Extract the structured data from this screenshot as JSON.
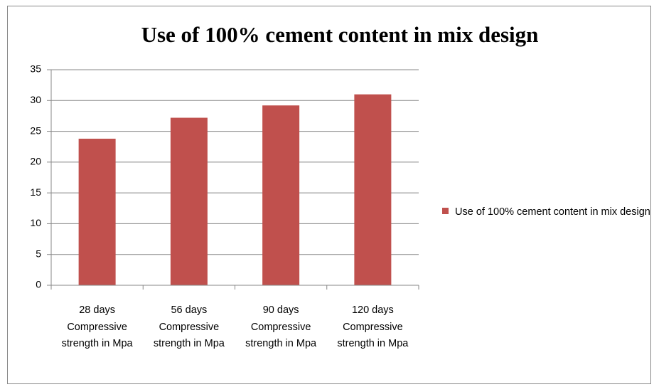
{
  "chart_data": {
    "type": "bar",
    "title": "Use of 100% cement content in mix design",
    "categories": [
      "28 days Compressive strength in Mpa",
      "56 days Compressive strength in Mpa",
      "90 days Compressive strength in Mpa",
      "120 days Compressive strength in Mpa"
    ],
    "series": [
      {
        "name": "Use of 100% cement content in mix design",
        "color": "#c0504d",
        "values": [
          23.8,
          27.2,
          29.2,
          31
        ]
      }
    ],
    "ylim": [
      0,
      35
    ],
    "yticks": [
      0,
      5,
      10,
      15,
      20,
      25,
      30,
      35
    ],
    "grid": true,
    "legend": "right"
  }
}
